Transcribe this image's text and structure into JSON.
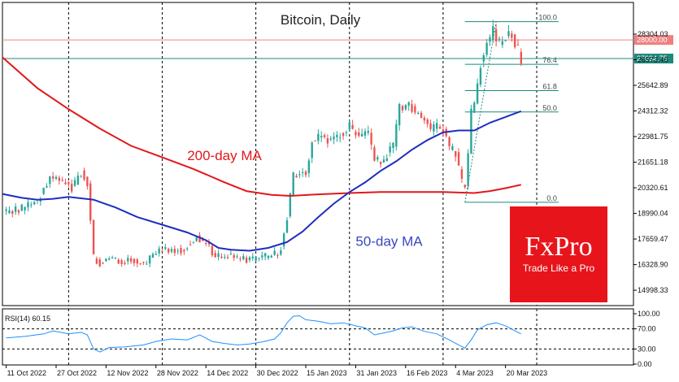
{
  "chart_data": {
    "type": "candlestick",
    "title": "Bitcoin, Daily",
    "price_axis": {
      "range": [
        14200,
        29950
      ],
      "ticks": [
        14998.33,
        16328.9,
        17659.47,
        18990.04,
        20320.61,
        21651.18,
        22981.75,
        24312.32,
        25642.89,
        26973.46,
        28304.03
      ],
      "tick_labels": [
        "14998.33",
        "16328.90",
        "17659.47",
        "18990.04",
        "20320.61",
        "21651.18",
        "22981.75",
        "24312.32",
        "25642.89",
        "26973.46",
        "28304.03"
      ]
    },
    "time_axis": {
      "labels": [
        {
          "day": 0,
          "text": "11 Oct 2022"
        },
        {
          "day": 16,
          "text": "27 Oct 2022"
        },
        {
          "day": 32,
          "text": "12 Nov 2022"
        },
        {
          "day": 48,
          "text": "28 Nov 2022"
        },
        {
          "day": 64,
          "text": "14 Dec 2022"
        },
        {
          "day": 80,
          "text": "30 Dec 2022"
        },
        {
          "day": 96,
          "text": "15 Jan 2023"
        },
        {
          "day": 112,
          "text": "31 Jan 2023"
        },
        {
          "day": 128,
          "text": "16 Feb 2023"
        },
        {
          "day": 144,
          "text": "4 Mar 2023"
        },
        {
          "day": 160,
          "text": "20 Mar 2023"
        }
      ],
      "vertical_grid_days": [
        20,
        50,
        80,
        110,
        140,
        170
      ],
      "day_span": [
        -1.2,
        201
      ]
    },
    "key_points": [
      {
        "day": 0,
        "close": 19100
      },
      {
        "day": 5,
        "close": 19250
      },
      {
        "day": 10,
        "close": 19650
      },
      {
        "day": 14,
        "close": 20900
      },
      {
        "day": 18,
        "close": 20600
      },
      {
        "day": 21,
        "close": 20350
      },
      {
        "day": 24,
        "close": 21100
      },
      {
        "day": 26,
        "close": 20500
      },
      {
        "day": 28,
        "close": 16700
      },
      {
        "day": 30,
        "close": 16400
      },
      {
        "day": 33,
        "close": 16700
      },
      {
        "day": 37,
        "close": 16500
      },
      {
        "day": 40,
        "close": 16600
      },
      {
        "day": 44,
        "close": 16300
      },
      {
        "day": 48,
        "close": 17000
      },
      {
        "day": 52,
        "close": 17100
      },
      {
        "day": 57,
        "close": 17100
      },
      {
        "day": 61,
        "close": 17800
      },
      {
        "day": 64,
        "close": 17400
      },
      {
        "day": 67,
        "close": 16800
      },
      {
        "day": 72,
        "close": 16800
      },
      {
        "day": 76,
        "close": 16600
      },
      {
        "day": 80,
        "close": 16600
      },
      {
        "day": 84,
        "close": 16800
      },
      {
        "day": 87,
        "close": 16950
      },
      {
        "day": 88,
        "close": 17200
      },
      {
        "day": 90,
        "close": 18800
      },
      {
        "day": 92,
        "close": 20900
      },
      {
        "day": 94,
        "close": 21100
      },
      {
        "day": 96,
        "close": 21200
      },
      {
        "day": 98,
        "close": 22700
      },
      {
        "day": 100,
        "close": 23000
      },
      {
        "day": 104,
        "close": 22800
      },
      {
        "day": 108,
        "close": 23200
      },
      {
        "day": 110,
        "close": 23500
      },
      {
        "day": 112,
        "close": 23100
      },
      {
        "day": 114,
        "close": 22900
      },
      {
        "day": 116,
        "close": 23200
      },
      {
        "day": 118,
        "close": 21800
      },
      {
        "day": 120,
        "close": 21600
      },
      {
        "day": 124,
        "close": 22500
      },
      {
        "day": 126,
        "close": 24500
      },
      {
        "day": 129,
        "close": 24600
      },
      {
        "day": 132,
        "close": 24200
      },
      {
        "day": 134,
        "close": 23800
      },
      {
        "day": 136,
        "close": 23300
      },
      {
        "day": 138,
        "close": 23500
      },
      {
        "day": 140,
        "close": 23300
      },
      {
        "day": 142,
        "close": 22400
      },
      {
        "day": 144,
        "close": 22100
      },
      {
        "day": 146,
        "close": 20600
      },
      {
        "day": 147,
        "close": 20300
      },
      {
        "day": 148,
        "close": 22100
      },
      {
        "day": 149,
        "close": 24300
      },
      {
        "day": 150,
        "close": 24600
      },
      {
        "day": 152,
        "close": 26800
      },
      {
        "day": 154,
        "close": 27800
      },
      {
        "day": 156,
        "close": 28400
      },
      {
        "day": 158,
        "close": 27800
      },
      {
        "day": 160,
        "close": 28200
      },
      {
        "day": 162,
        "close": 28300
      },
      {
        "day": 164,
        "close": 27500
      },
      {
        "day": 165,
        "close": 27035
      }
    ],
    "ma_200": [
      {
        "day": -1.2,
        "value": 27100
      },
      {
        "day": 10,
        "value": 25500
      },
      {
        "day": 20,
        "value": 24400
      },
      {
        "day": 30,
        "value": 23400
      },
      {
        "day": 40,
        "value": 22500
      },
      {
        "day": 50,
        "value": 21900
      },
      {
        "day": 60,
        "value": 21300
      },
      {
        "day": 70,
        "value": 20600
      },
      {
        "day": 77,
        "value": 20150
      },
      {
        "day": 85,
        "value": 19950
      },
      {
        "day": 91,
        "value": 19900
      },
      {
        "day": 100,
        "value": 19980
      },
      {
        "day": 110,
        "value": 20050
      },
      {
        "day": 120,
        "value": 20100
      },
      {
        "day": 130,
        "value": 20100
      },
      {
        "day": 140,
        "value": 20100
      },
      {
        "day": 150,
        "value": 20050
      },
      {
        "day": 155,
        "value": 20150
      },
      {
        "day": 160,
        "value": 20300
      },
      {
        "day": 165,
        "value": 20480
      }
    ],
    "ma_50": [
      {
        "day": -1.2,
        "value": 20000
      },
      {
        "day": 5,
        "value": 19800
      },
      {
        "day": 10,
        "value": 19700
      },
      {
        "day": 15,
        "value": 19750
      },
      {
        "day": 20,
        "value": 19850
      },
      {
        "day": 28,
        "value": 19700
      },
      {
        "day": 35,
        "value": 19300
      },
      {
        "day": 42,
        "value": 18800
      },
      {
        "day": 50,
        "value": 18400
      },
      {
        "day": 58,
        "value": 18000
      },
      {
        "day": 64,
        "value": 17600
      },
      {
        "day": 68,
        "value": 17200
      },
      {
        "day": 72,
        "value": 17100
      },
      {
        "day": 78,
        "value": 17050
      },
      {
        "day": 84,
        "value": 17200
      },
      {
        "day": 90,
        "value": 17500
      },
      {
        "day": 95,
        "value": 18050
      },
      {
        "day": 100,
        "value": 18800
      },
      {
        "day": 105,
        "value": 19500
      },
      {
        "day": 110,
        "value": 20100
      },
      {
        "day": 115,
        "value": 20600
      },
      {
        "day": 120,
        "value": 21200
      },
      {
        "day": 125,
        "value": 21700
      },
      {
        "day": 130,
        "value": 22300
      },
      {
        "day": 135,
        "value": 22800
      },
      {
        "day": 140,
        "value": 23200
      },
      {
        "day": 145,
        "value": 23300
      },
      {
        "day": 150,
        "value": 23300
      },
      {
        "day": 155,
        "value": 23700
      },
      {
        "day": 160,
        "value": 24000
      },
      {
        "day": 165,
        "value": 24300
      }
    ],
    "ma_labels": {
      "ma200": "200-day MA",
      "ma50": "50-day MA"
    },
    "ma_label_anchors": {
      "ma200": {
        "day": 58,
        "price": 21750
      },
      "ma50": {
        "day": 112,
        "price": 17300
      }
    },
    "levels": {
      "price_line": 28000.0,
      "current_price": 27034.75,
      "price_line_label": "28000.00",
      "current_price_label": "27034.75"
    },
    "fibonacci": {
      "start_day": 147,
      "end_day": 177,
      "low": 19570,
      "high": 28950,
      "levels": [
        {
          "ratio": 1.0,
          "label": "100.0"
        },
        {
          "ratio": 0.764,
          "label": "76.4"
        },
        {
          "ratio": 0.618,
          "label": "61.8"
        },
        {
          "ratio": 0.5,
          "label": "50.0"
        },
        {
          "ratio": 0.0,
          "label": "0.0"
        }
      ]
    },
    "rsi": {
      "label": "RSI(14) 60.15",
      "range": [
        0,
        100
      ],
      "tick_labels": [
        "100.00",
        "70.00",
        "30.00",
        "0.00"
      ],
      "tick_values": [
        100,
        70,
        30,
        0
      ],
      "dashed_levels": [
        70,
        30
      ],
      "points": [
        {
          "day": 0,
          "value": 52
        },
        {
          "day": 6,
          "value": 55
        },
        {
          "day": 12,
          "value": 60
        },
        {
          "day": 15,
          "value": 66
        },
        {
          "day": 20,
          "value": 60
        },
        {
          "day": 24,
          "value": 63
        },
        {
          "day": 26,
          "value": 58
        },
        {
          "day": 28,
          "value": 30
        },
        {
          "day": 30,
          "value": 24
        },
        {
          "day": 33,
          "value": 33
        },
        {
          "day": 38,
          "value": 34
        },
        {
          "day": 44,
          "value": 38
        },
        {
          "day": 48,
          "value": 45
        },
        {
          "day": 53,
          "value": 50
        },
        {
          "day": 58,
          "value": 48
        },
        {
          "day": 62,
          "value": 58
        },
        {
          "day": 66,
          "value": 45
        },
        {
          "day": 70,
          "value": 41
        },
        {
          "day": 74,
          "value": 38
        },
        {
          "day": 78,
          "value": 40
        },
        {
          "day": 82,
          "value": 44
        },
        {
          "day": 86,
          "value": 50
        },
        {
          "day": 88,
          "value": 62
        },
        {
          "day": 90,
          "value": 82
        },
        {
          "day": 92,
          "value": 95
        },
        {
          "day": 94,
          "value": 96
        },
        {
          "day": 96,
          "value": 88
        },
        {
          "day": 100,
          "value": 85
        },
        {
          "day": 104,
          "value": 80
        },
        {
          "day": 108,
          "value": 82
        },
        {
          "day": 112,
          "value": 76
        },
        {
          "day": 115,
          "value": 72
        },
        {
          "day": 118,
          "value": 58
        },
        {
          "day": 121,
          "value": 62
        },
        {
          "day": 124,
          "value": 66
        },
        {
          "day": 127,
          "value": 72
        },
        {
          "day": 130,
          "value": 74
        },
        {
          "day": 134,
          "value": 65
        },
        {
          "day": 138,
          "value": 60
        },
        {
          "day": 142,
          "value": 48
        },
        {
          "day": 145,
          "value": 38
        },
        {
          "day": 147,
          "value": 32
        },
        {
          "day": 149,
          "value": 48
        },
        {
          "day": 151,
          "value": 68
        },
        {
          "day": 154,
          "value": 78
        },
        {
          "day": 157,
          "value": 82
        },
        {
          "day": 160,
          "value": 76
        },
        {
          "day": 163,
          "value": 66
        },
        {
          "day": 165,
          "value": 60
        }
      ]
    }
  },
  "logo": {
    "brand": "FxPro",
    "tagline": "Trade Like a Pro",
    "color": "#e8141b"
  },
  "colors": {
    "up": "#26a69a",
    "down": "#ef5350",
    "ma200": "#e2171b",
    "ma50": "#1f2ebd",
    "rsi_line": "#1e90ff",
    "fib": "#1a8a7c",
    "price_badge": "#f08080",
    "current_badge": "#1a8a7c",
    "grid": "#000000"
  }
}
